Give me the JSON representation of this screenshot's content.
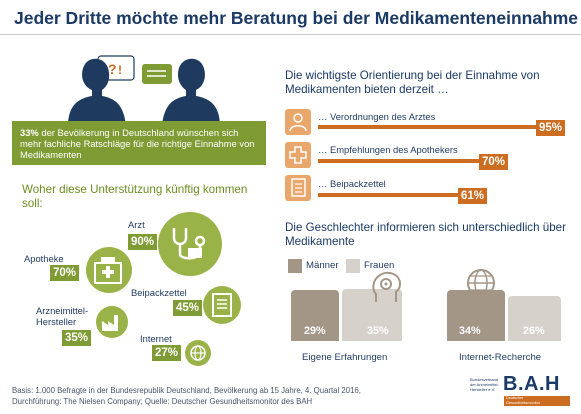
{
  "title": "Jeder Dritte möchte mehr Beratung bei der Medikamenteneinnahme",
  "intro": {
    "highlight": "33%",
    "text": " der Bevölkerung in Deutschland wünschen sich mehr fachliche Ratschläge für die richtige Einnahme von Medikamenten"
  },
  "support": {
    "heading": "Woher diese Unterstützung künftig kommen soll:",
    "items": [
      {
        "label": "Arzt",
        "value": "90%",
        "icon": "stethoscope-icon"
      },
      {
        "label": "Apotheke",
        "value": "70%",
        "icon": "pharmacy-icon"
      },
      {
        "label": "Beipackzettel",
        "value": "45%",
        "icon": "leaflet-icon"
      },
      {
        "label": "Arzneimittel-\nHersteller",
        "value": "35%",
        "icon": "factory-icon"
      },
      {
        "label": "Internet",
        "value": "27%",
        "icon": "globe-icon"
      }
    ]
  },
  "orientation": {
    "heading": "Die wichtigste Orientierung bei der Einnahme von Medikamenten bieten derzeit …",
    "items": [
      {
        "label": "… Verordnungen des Arztes",
        "value": "95%",
        "icon": "doctor-icon"
      },
      {
        "label": "… Empfehlungen des Apothekers",
        "value": "70%",
        "icon": "pharmacy-cross-icon"
      },
      {
        "label": "… Beipackzettel",
        "value": "61%",
        "icon": "leaflet-icon"
      }
    ]
  },
  "gender": {
    "heading": "Die Geschlechter informieren sich unterschiedlich über Medikamente",
    "legend": {
      "male": "Männer",
      "female": "Frauen"
    },
    "colors": {
      "male": "#a49687",
      "female": "#d7d1cb"
    },
    "categories": [
      {
        "label": "Eigene Erfahrungen",
        "male": "29%",
        "female": "35%",
        "icon": "brain-gear-icon"
      },
      {
        "label": "Internet-Recherche",
        "male": "34%",
        "female": "26%",
        "icon": "globe-icon"
      }
    ]
  },
  "footer": {
    "line1": "Basis: 1.000 Befragte in der Bundesrepublik Deutschland, Bevölkerung ab 15 Jahre, 4. Quartal 2016,",
    "line2": "Durchführung: The Nielsen Company; Quelle: Deutscher Gesundheitsmonitor des BAH"
  },
  "logo": {
    "text": "B.A.H",
    "small1": "Bundesverband",
    "small2": "der Arzneimittel-",
    "small3": "Hersteller e.V.",
    "band1": "Deutscher",
    "band2": "Gesundheitsmonitor"
  },
  "chart_data": [
    {
      "type": "bar",
      "title": "Woher diese Unterstützung künftig kommen soll:",
      "categories": [
        "Arzt",
        "Apotheke",
        "Beipackzettel",
        "Arzneimittel-Hersteller",
        "Internet"
      ],
      "values": [
        90,
        70,
        45,
        35,
        27
      ]
    },
    {
      "type": "bar",
      "title": "Die wichtigste Orientierung bei der Einnahme von Medikamenten bieten derzeit …",
      "categories": [
        "… Verordnungen des Arztes",
        "… Empfehlungen des Apothekers",
        "… Beipackzettel"
      ],
      "values": [
        95,
        70,
        61
      ],
      "ylim": [
        0,
        100
      ]
    },
    {
      "type": "bar",
      "title": "Die Geschlechter informieren sich unterschiedlich über Medikamente",
      "categories": [
        "Eigene Erfahrungen",
        "Internet-Recherche"
      ],
      "series": [
        {
          "name": "Männer",
          "values": [
            29,
            34
          ]
        },
        {
          "name": "Frauen",
          "values": [
            35,
            26
          ]
        }
      ]
    }
  ]
}
